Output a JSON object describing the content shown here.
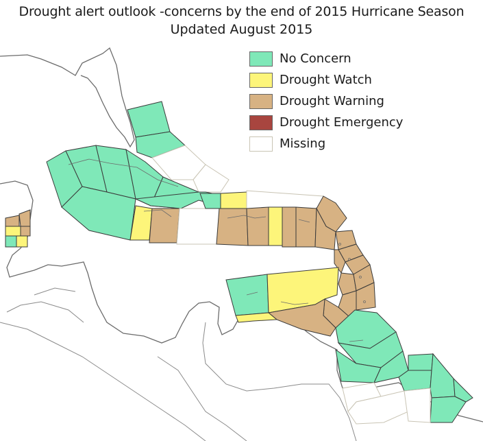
{
  "title": {
    "line1": "Drought alert outlook -concerns by the end of 2015 Hurricane Season",
    "line2": "Updated August 2015"
  },
  "legend": [
    {
      "label": "No Concern",
      "color": "#7fe8b8",
      "key": "none"
    },
    {
      "label": "Drought Watch",
      "color": "#fdf57a",
      "key": "watch"
    },
    {
      "label": "Drought Warning",
      "color": "#d7b283",
      "key": "warning"
    },
    {
      "label": "Drought Emergency",
      "color": "#a8453f",
      "key": "emergency"
    },
    {
      "label": "Missing",
      "color": "#ffffff",
      "key": "missing"
    }
  ],
  "colors": {
    "none": "#7fe8b8",
    "watch": "#fdf57a",
    "warning": "#d7b283",
    "missing": "#ffffff",
    "coast": "#6b6b6b",
    "border": "#3a3a3a",
    "missing_border": "#c9c4b4"
  }
}
